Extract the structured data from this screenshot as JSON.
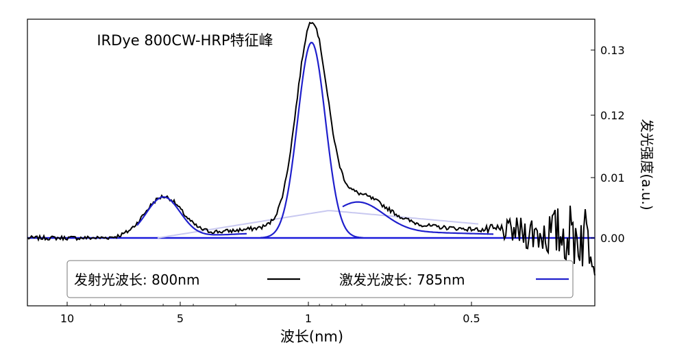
{
  "chart_data": {
    "type": "line",
    "title": "IRDye 800CW-HRP特征峰",
    "xlabel": "波长(nm)",
    "ylabel": "发光强度(a.u.)",
    "x_axis_reversed": true,
    "x_scale": "log",
    "x_ticks": [
      {
        "value": 10,
        "label": "10"
      },
      {
        "value": 5,
        "label": "5"
      },
      {
        "value": 1,
        "label": "1"
      },
      {
        "value": 0.5,
        "label": "0.5"
      }
    ],
    "y_ticks": [
      {
        "value": 0.0,
        "label": "0.00"
      },
      {
        "value": 0.01,
        "label": "0.01"
      },
      {
        "value": 0.12,
        "label": "0.12"
      },
      {
        "value": 0.13,
        "label": "0.13"
      }
    ],
    "y_axis_position": "right",
    "legend": {
      "placement": "bottom",
      "entries": [
        {
          "label": "激发光波长: 785nm",
          "color": "#1f1fcc"
        },
        {
          "label": "发射光波长: 800nm",
          "color": "#000000"
        }
      ]
    },
    "peaks": [
      {
        "x": 4.0,
        "height_fraction": 0.2
      },
      {
        "x": 0.97,
        "height_fraction": 0.96
      },
      {
        "x": 0.62,
        "height_fraction": 0.14
      }
    ],
    "series": [
      {
        "name": "发射光波长: 800nm",
        "color": "#000000",
        "style": "noisy-line"
      },
      {
        "name": "激发光波长: 785nm",
        "color": "#1f1fcc",
        "style": "fitted-peaks"
      }
    ],
    "baseline_color": "#1a1adb",
    "background_fit_color": "#c8c8f0"
  }
}
